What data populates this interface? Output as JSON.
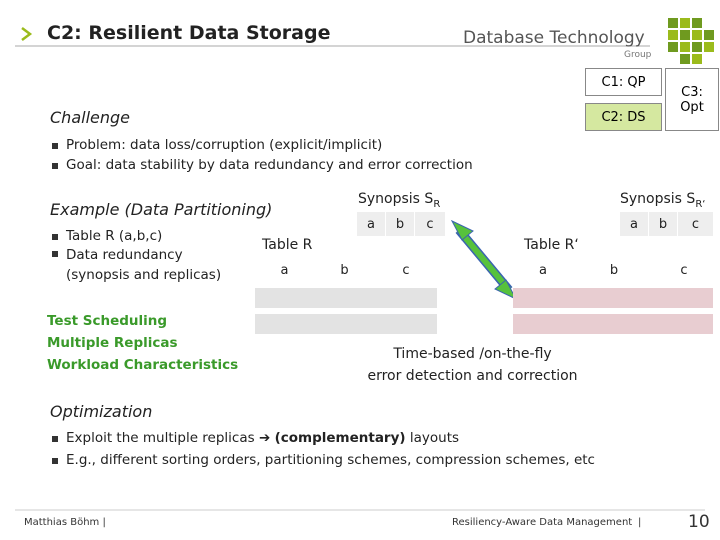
{
  "header": {
    "title": "C2: Resilient Data Storage",
    "logo": "Database Technology",
    "logo_sub": "Group"
  },
  "nav": {
    "c1": "C1: QP",
    "c2": "C2: DS",
    "c3": [
      "C3:",
      "Opt"
    ]
  },
  "challenge": {
    "heading": "Challenge",
    "bullets": [
      "Problem: data loss/corruption (explicit/implicit)",
      "Goal: data stability by data redundancy and error correction"
    ]
  },
  "example": {
    "heading": "Example (Data Partitioning)",
    "bullets": [
      "Table R (a,b,c)",
      "Data redundancy (synopsis and replicas)"
    ]
  },
  "topics": [
    "Test Scheduling",
    "Multiple Replicas",
    "Workload Characteristics"
  ],
  "diagram": {
    "synopsis_r": {
      "label": "Synopsis S",
      "sub": "R",
      "columns": [
        "a",
        "b",
        "c"
      ]
    },
    "table_r": {
      "label": "Table R",
      "columns": [
        "a",
        "b",
        "c"
      ]
    },
    "table_r2": {
      "label": "Table R‘",
      "columns": [
        "a",
        "b",
        "c"
      ]
    },
    "synopsis_r2": {
      "label": "Synopsis S",
      "sub": "R‘",
      "columns": [
        "a",
        "b",
        "c"
      ]
    },
    "caption": [
      "Time-based /on-the-fly",
      "error detection and correction"
    ]
  },
  "optimization": {
    "heading": "Optimization",
    "bullets": [
      {
        "text": "Exploit the multiple replicas",
        "arrow": "➔",
        "bold": "(complementary)",
        "rest": "layouts"
      },
      "E.g., different sorting orders, partitioning schemes, compression schemes, etc"
    ]
  },
  "footer": {
    "author": "Matthias Böhm |",
    "center": "Resiliency-Aware Data Management",
    "separator": "|",
    "page": "10"
  }
}
